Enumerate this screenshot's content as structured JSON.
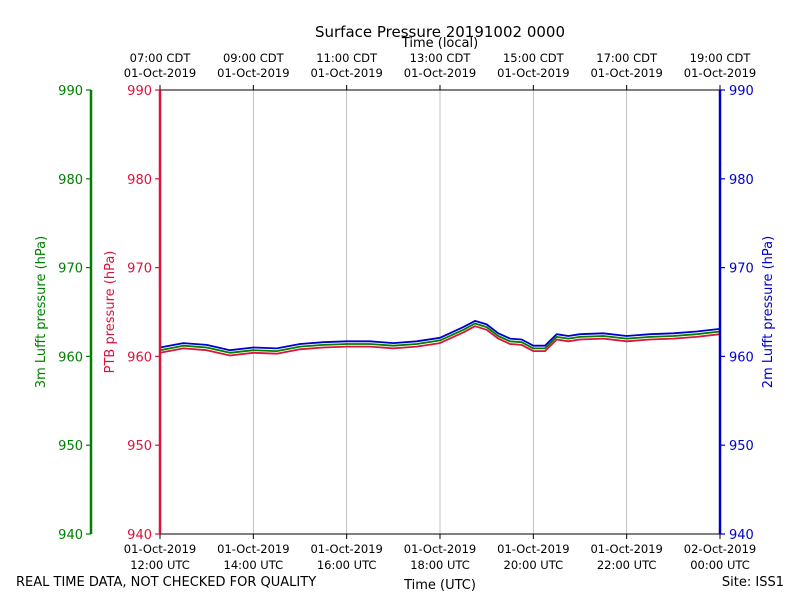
{
  "chart_data": {
    "type": "line",
    "title": "Surface Pressure 20191002 0000",
    "xlabel_top": "Time (local)",
    "xlabel_bottom": "Time (UTC)",
    "x_hours": [
      12,
      24
    ],
    "ylim": [
      940,
      990
    ],
    "yticks": [
      940,
      950,
      960,
      970,
      980,
      990
    ],
    "grid": "vertical",
    "axes": {
      "outer_left": {
        "label": "3m Lufft pressure (hPa)",
        "color": "#008000"
      },
      "inner_left": {
        "label": "PTB pressure (hPa)",
        "color": "#dc143c"
      },
      "right": {
        "label": "2m Lufft pressure (hPa)",
        "color": "#0000cd"
      }
    },
    "bottom_ticks": [
      {
        "hour": 12,
        "date": "01-Oct-2019",
        "time": "12:00 UTC"
      },
      {
        "hour": 14,
        "date": "01-Oct-2019",
        "time": "14:00 UTC"
      },
      {
        "hour": 16,
        "date": "01-Oct-2019",
        "time": "16:00 UTC"
      },
      {
        "hour": 18,
        "date": "01-Oct-2019",
        "time": "18:00 UTC"
      },
      {
        "hour": 20,
        "date": "01-Oct-2019",
        "time": "20:00 UTC"
      },
      {
        "hour": 22,
        "date": "01-Oct-2019",
        "time": "22:00 UTC"
      },
      {
        "hour": 24,
        "date": "02-Oct-2019",
        "time": "00:00 UTC"
      }
    ],
    "top_ticks": [
      {
        "hour": 12,
        "time": "07:00 CDT",
        "date": "01-Oct-2019"
      },
      {
        "hour": 14,
        "time": "09:00 CDT",
        "date": "01-Oct-2019"
      },
      {
        "hour": 16,
        "time": "11:00 CDT",
        "date": "01-Oct-2019"
      },
      {
        "hour": 18,
        "time": "13:00 CDT",
        "date": "01-Oct-2019"
      },
      {
        "hour": 20,
        "time": "15:00 CDT",
        "date": "01-Oct-2019"
      },
      {
        "hour": 22,
        "time": "17:00 CDT",
        "date": "01-Oct-2019"
      },
      {
        "hour": 24,
        "time": "19:00 CDT",
        "date": "01-Oct-2019"
      }
    ],
    "x": [
      12.0,
      12.5,
      13.0,
      13.5,
      14.0,
      14.5,
      15.0,
      15.5,
      16.0,
      16.5,
      17.0,
      17.5,
      18.0,
      18.5,
      18.75,
      19.0,
      19.25,
      19.5,
      19.75,
      20.0,
      20.25,
      20.5,
      20.75,
      21.0,
      21.5,
      22.0,
      22.5,
      23.0,
      23.5,
      24.0
    ],
    "series": [
      {
        "name": "PTB",
        "color": "#dc143c",
        "values": [
          960.4,
          960.9,
          960.7,
          960.1,
          960.4,
          960.3,
          960.8,
          961.0,
          961.1,
          961.1,
          960.9,
          961.1,
          961.5,
          962.7,
          963.4,
          963.0,
          962.0,
          961.4,
          961.3,
          960.6,
          960.6,
          961.9,
          961.7,
          961.9,
          962.0,
          961.7,
          961.9,
          962.0,
          962.2,
          962.5
        ]
      },
      {
        "name": "3m Lufft",
        "color": "#008000",
        "values": [
          960.7,
          961.2,
          961.0,
          960.4,
          960.7,
          960.6,
          961.1,
          961.3,
          961.4,
          961.4,
          961.2,
          961.4,
          961.8,
          963.0,
          963.7,
          963.3,
          962.3,
          961.7,
          961.6,
          960.9,
          960.9,
          962.2,
          962.0,
          962.2,
          962.3,
          962.0,
          962.2,
          962.3,
          962.5,
          962.8
        ]
      },
      {
        "name": "2m Lufft",
        "color": "#0000cd",
        "values": [
          961.0,
          961.5,
          961.3,
          960.7,
          961.0,
          960.9,
          961.4,
          961.6,
          961.7,
          961.7,
          961.5,
          961.7,
          962.1,
          963.3,
          964.0,
          963.6,
          962.6,
          962.0,
          961.9,
          961.2,
          961.2,
          962.5,
          962.3,
          962.5,
          962.6,
          962.3,
          962.5,
          962.6,
          962.8,
          963.1
        ]
      }
    ]
  },
  "footer": {
    "quality_note": "REAL TIME DATA, NOT CHECKED FOR QUALITY",
    "site": "Site: ISS1"
  }
}
